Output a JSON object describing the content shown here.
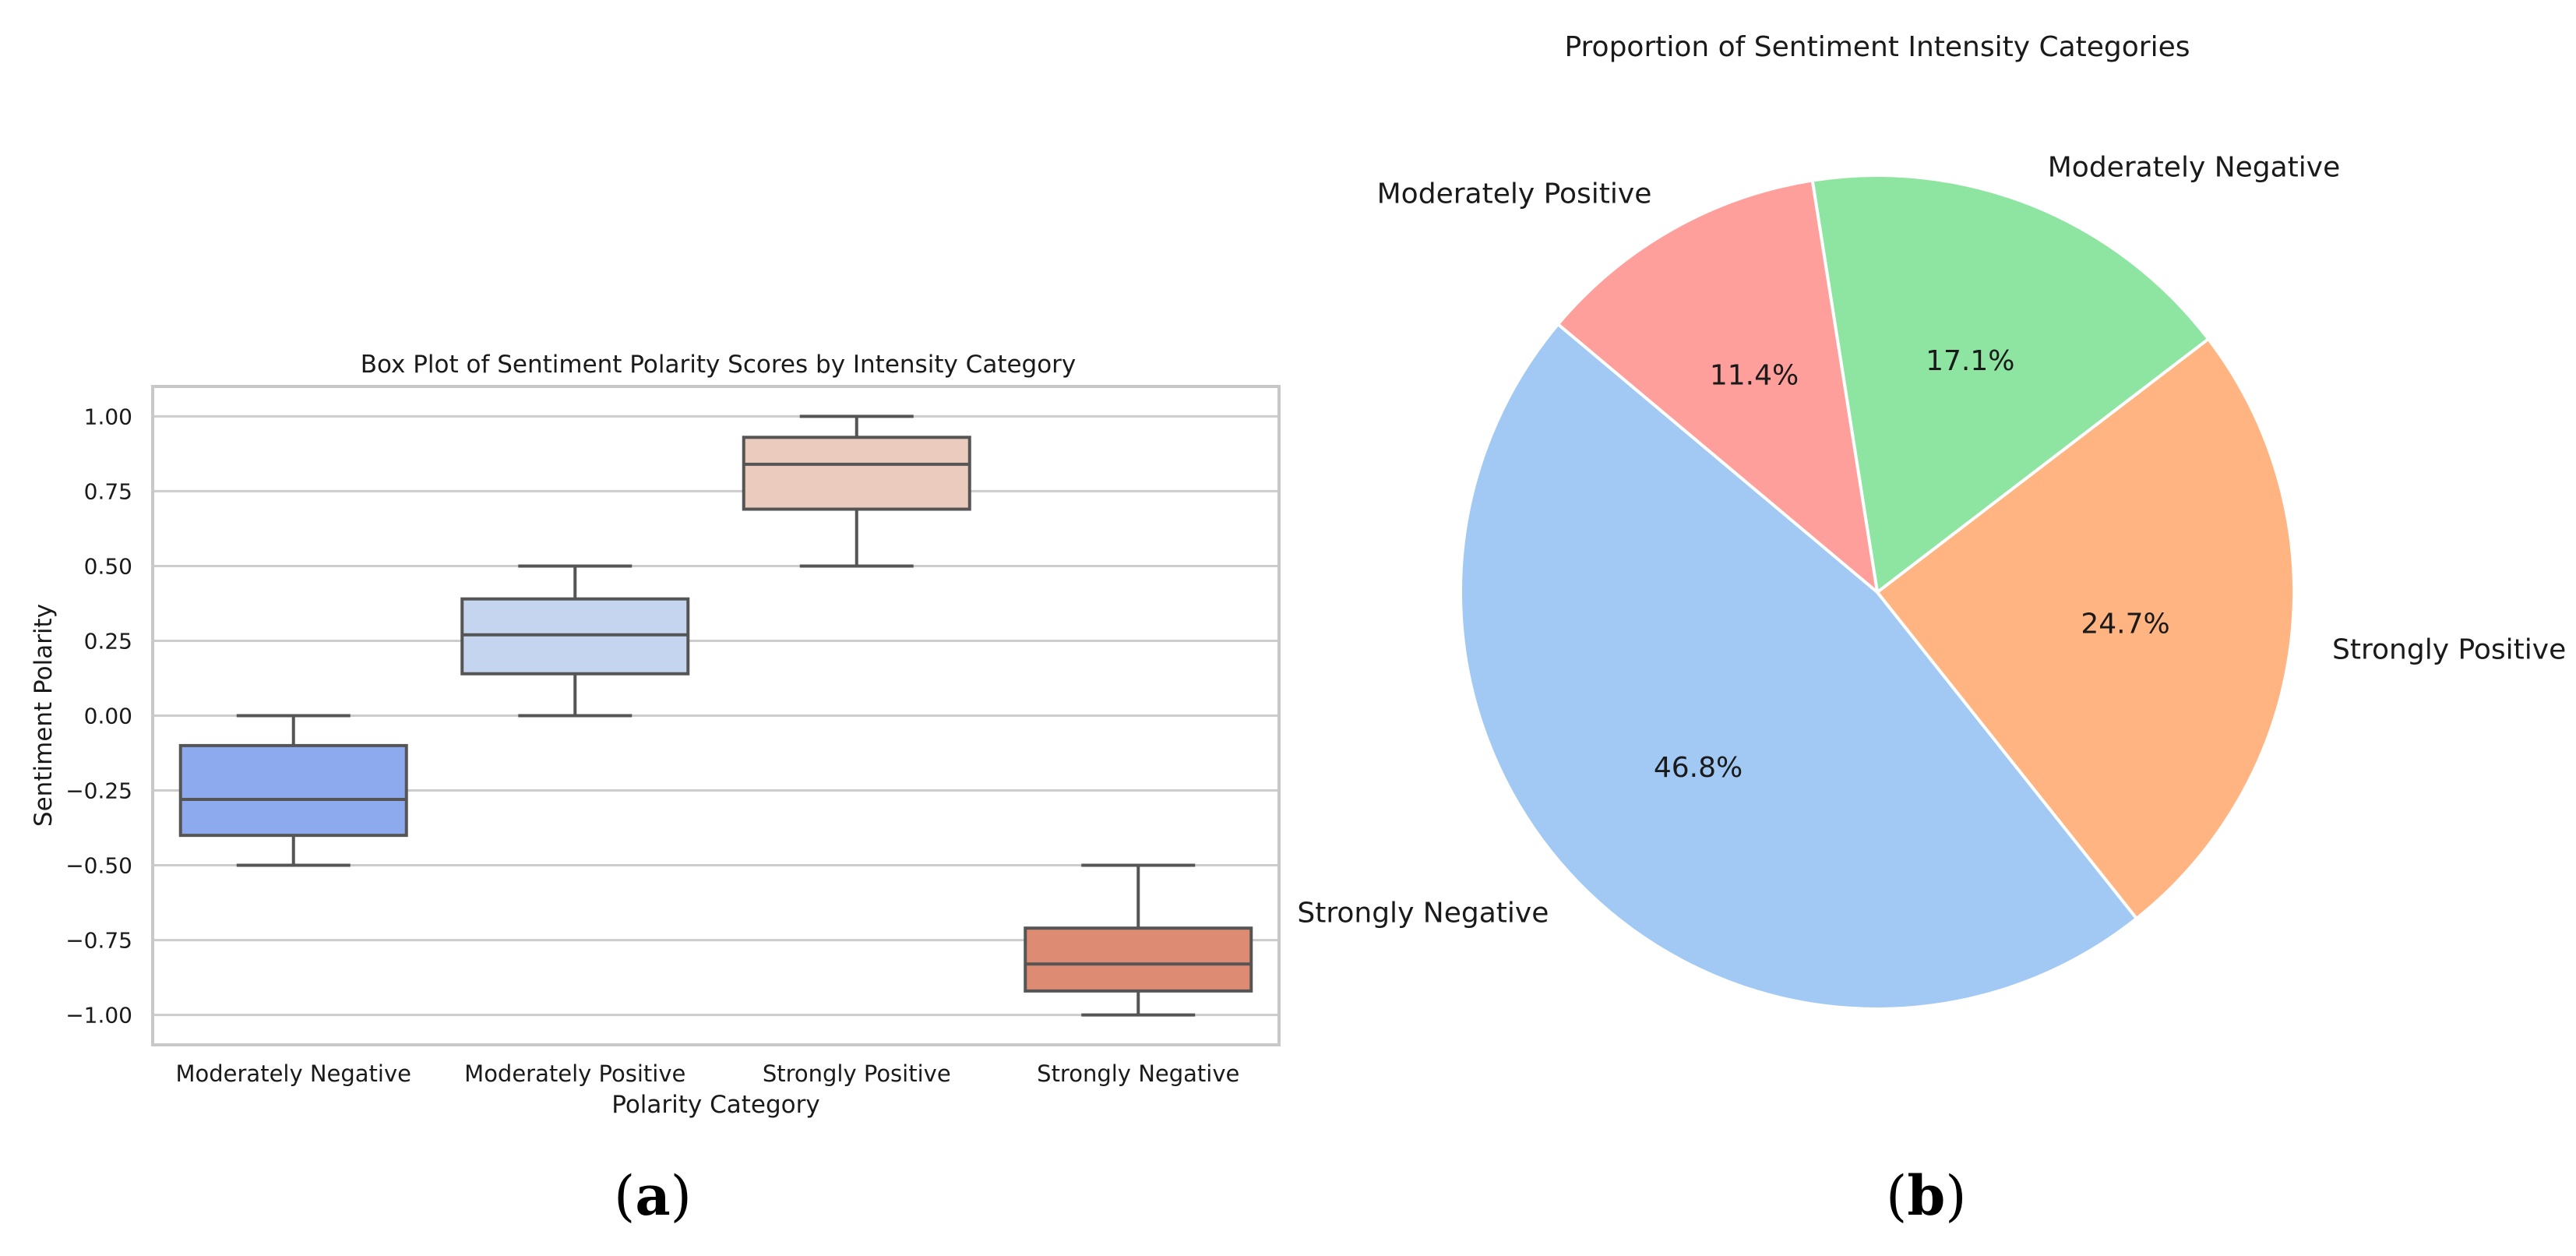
{
  "captions": {
    "a": "a",
    "b": "b"
  },
  "colors": {
    "grid": "#cccccc",
    "frame": "#c8c8c8",
    "box_edge": "#555555",
    "text": "#1a1a1a"
  },
  "chart_data": [
    {
      "type": "box",
      "title": "Box Plot of Sentiment Polarity Scores by Intensity Category",
      "xlabel": "Polarity Category",
      "ylabel": "Sentiment Polarity",
      "ylim": [
        -1.1,
        1.1
      ],
      "yticks": [
        1.0,
        0.75,
        0.5,
        0.25,
        0.0,
        -0.25,
        -0.5,
        -0.75,
        -1.0
      ],
      "ytick_labels": [
        "1.00",
        "0.75",
        "0.50",
        "0.25",
        "0.00",
        "−0.25",
        "−0.50",
        "−0.75",
        "−1.00"
      ],
      "grid": true,
      "categories": [
        "Moderately Negative",
        "Moderately Positive",
        "Strongly Positive",
        "Strongly Negative"
      ],
      "series": [
        {
          "name": "Moderately Negative",
          "whisker_low": -0.5,
          "q1": -0.4,
          "median": -0.28,
          "q3": -0.1,
          "whisker_high": 0.0,
          "color": "#8caaed"
        },
        {
          "name": "Moderately Positive",
          "whisker_low": 0.0,
          "q1": 0.14,
          "median": 0.27,
          "q3": 0.39,
          "whisker_high": 0.5,
          "color": "#c5d5ef"
        },
        {
          "name": "Strongly Positive",
          "whisker_low": 0.5,
          "q1": 0.69,
          "median": 0.84,
          "q3": 0.93,
          "whisker_high": 1.0,
          "color": "#ebcbbd"
        },
        {
          "name": "Strongly Negative",
          "whisker_low": -1.0,
          "q1": -0.92,
          "median": -0.83,
          "q3": -0.71,
          "whisker_high": -0.5,
          "color": "#dd8c73"
        }
      ]
    },
    {
      "type": "pie",
      "title": "Proportion of Sentiment Intensity Categories",
      "start_angle_deg": 140,
      "counterclock": true,
      "slices": [
        {
          "label": "Strongly Negative",
          "value": 46.8,
          "pct_label": "46.8%",
          "color": "#a1c9f4"
        },
        {
          "label": "Strongly Positive",
          "value": 24.7,
          "pct_label": "24.7%",
          "color": "#ffb482"
        },
        {
          "label": "Moderately Negative",
          "value": 17.1,
          "pct_label": "17.1%",
          "color": "#8de5a1"
        },
        {
          "label": "Moderately Positive",
          "value": 11.4,
          "pct_label": "11.4%",
          "color": "#ff9f9b"
        }
      ]
    }
  ]
}
